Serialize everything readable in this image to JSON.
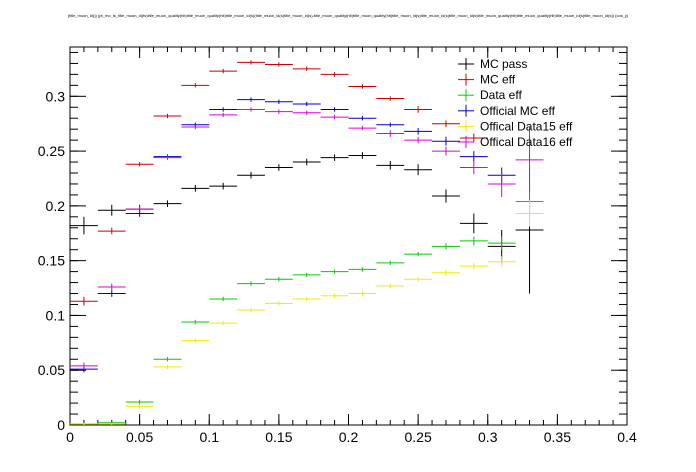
{
  "chart_data": {
    "type": "scatter",
    "title": "(title_muon_id()) (pt_rho_ls_title_muon_id(ts)title_muon_quality(hlt)title_muon_quality(hlt)title_muon_id(s)(title_muon_id(s)title_muon_id(s)-title_muon_quality(hlt)title_muon_quality(hlt)title_muon_id(s)title_muon_id(s)title_muon_id(s)title_muon_quality(hlt)title_muon_quality(hlt)title_muon_id(s)title_muon_id(s)) (cos_y)",
    "xlim": [
      0,
      0.4
    ],
    "ylim": [
      0,
      0.345
    ],
    "x_ticks": [
      {
        "value": 0,
        "label": "0"
      },
      {
        "value": 0.05,
        "label": "0.05"
      },
      {
        "value": 0.1,
        "label": "0.1"
      },
      {
        "value": 0.15,
        "label": "0.15"
      },
      {
        "value": 0.2,
        "label": "0.2"
      },
      {
        "value": 0.25,
        "label": "0.25"
      },
      {
        "value": 0.3,
        "label": "0.3"
      },
      {
        "value": 0.35,
        "label": "0.35"
      },
      {
        "value": 0.4,
        "label": "0.4"
      }
    ],
    "y_ticks": [
      {
        "value": 0,
        "label": "0"
      },
      {
        "value": 0.05,
        "label": "0.05"
      },
      {
        "value": 0.1,
        "label": "0.1"
      },
      {
        "value": 0.15,
        "label": "0.15"
      },
      {
        "value": 0.2,
        "label": "0.2"
      },
      {
        "value": 0.25,
        "label": "0.25"
      },
      {
        "value": 0.3,
        "label": "0.3"
      }
    ],
    "bin_half_width": 0.01,
    "legend_position": "top-right",
    "grid": false,
    "series": [
      {
        "name": "MC pass",
        "color": "#000000",
        "points": [
          {
            "x": 0.01,
            "y": 0.182,
            "err": 0.008
          },
          {
            "x": 0.03,
            "y": 0.196,
            "err": 0.005
          },
          {
            "x": 0.05,
            "y": 0.197,
            "err": 0.004
          },
          {
            "x": 0.07,
            "y": 0.202,
            "err": 0.003
          },
          {
            "x": 0.09,
            "y": 0.216,
            "err": 0.003
          },
          {
            "x": 0.11,
            "y": 0.218,
            "err": 0.003
          },
          {
            "x": 0.13,
            "y": 0.228,
            "err": 0.003
          },
          {
            "x": 0.15,
            "y": 0.235,
            "err": 0.003
          },
          {
            "x": 0.17,
            "y": 0.24,
            "err": 0.003
          },
          {
            "x": 0.19,
            "y": 0.244,
            "err": 0.003
          },
          {
            "x": 0.21,
            "y": 0.246,
            "err": 0.003
          },
          {
            "x": 0.23,
            "y": 0.237,
            "err": 0.004
          },
          {
            "x": 0.25,
            "y": 0.233,
            "err": 0.005
          },
          {
            "x": 0.27,
            "y": 0.209,
            "err": 0.006
          },
          {
            "x": 0.29,
            "y": 0.184,
            "err": 0.009
          },
          {
            "x": 0.31,
            "y": 0.163,
            "err": 0.015
          },
          {
            "x": 0.33,
            "y": 0.178,
            "err": 0.058
          }
        ]
      },
      {
        "name": "MC eff",
        "color": "#cc0000",
        "points": [
          {
            "x": 0.01,
            "y": 0.113,
            "err": 0.004
          },
          {
            "x": 0.03,
            "y": 0.177,
            "err": 0.003
          },
          {
            "x": 0.05,
            "y": 0.238,
            "err": 0.002
          },
          {
            "x": 0.07,
            "y": 0.282,
            "err": 0.002
          },
          {
            "x": 0.09,
            "y": 0.31,
            "err": 0.002
          },
          {
            "x": 0.11,
            "y": 0.323,
            "err": 0.002
          },
          {
            "x": 0.13,
            "y": 0.331,
            "err": 0.002
          },
          {
            "x": 0.15,
            "y": 0.329,
            "err": 0.002
          },
          {
            "x": 0.17,
            "y": 0.325,
            "err": 0.002
          },
          {
            "x": 0.19,
            "y": 0.32,
            "err": 0.002
          },
          {
            "x": 0.21,
            "y": 0.309,
            "err": 0.002
          },
          {
            "x": 0.23,
            "y": 0.298,
            "err": 0.002
          },
          {
            "x": 0.25,
            "y": 0.288,
            "err": 0.003
          },
          {
            "x": 0.27,
            "y": 0.275,
            "err": 0.003
          },
          {
            "x": 0.29,
            "y": 0.262,
            "err": 0.004
          }
        ]
      },
      {
        "name": "Data eff",
        "color": "#00cc00",
        "points": [
          {
            "x": 0.01,
            "y": 0.001,
            "err": 0.001
          },
          {
            "x": 0.03,
            "y": 0.002,
            "err": 0.001
          },
          {
            "x": 0.05,
            "y": 0.021,
            "err": 0.002
          },
          {
            "x": 0.07,
            "y": 0.06,
            "err": 0.002
          },
          {
            "x": 0.09,
            "y": 0.094,
            "err": 0.002
          },
          {
            "x": 0.11,
            "y": 0.115,
            "err": 0.002
          },
          {
            "x": 0.13,
            "y": 0.129,
            "err": 0.002
          },
          {
            "x": 0.15,
            "y": 0.133,
            "err": 0.002
          },
          {
            "x": 0.17,
            "y": 0.137,
            "err": 0.002
          },
          {
            "x": 0.19,
            "y": 0.14,
            "err": 0.002
          },
          {
            "x": 0.21,
            "y": 0.142,
            "err": 0.002
          },
          {
            "x": 0.23,
            "y": 0.148,
            "err": 0.002
          },
          {
            "x": 0.25,
            "y": 0.156,
            "err": 0.002
          },
          {
            "x": 0.27,
            "y": 0.163,
            "err": 0.003
          },
          {
            "x": 0.29,
            "y": 0.168,
            "err": 0.004
          },
          {
            "x": 0.31,
            "y": 0.166,
            "err": 0.006
          },
          {
            "x": 0.33,
            "y": 0.204,
            "err": 0.014
          }
        ]
      },
      {
        "name": "Official MC eff",
        "color": "#0000cc",
        "points": [
          {
            "x": 0.01,
            "y": 0.051,
            "err": 0.003
          },
          {
            "x": 0.03,
            "y": 0.12,
            "err": 0.003
          },
          {
            "x": 0.05,
            "y": 0.193,
            "err": 0.003
          },
          {
            "x": 0.07,
            "y": 0.245,
            "err": 0.002
          },
          {
            "x": 0.09,
            "y": 0.274,
            "err": 0.002
          },
          {
            "x": 0.11,
            "y": 0.288,
            "err": 0.002
          },
          {
            "x": 0.13,
            "y": 0.297,
            "err": 0.002
          },
          {
            "x": 0.15,
            "y": 0.295,
            "err": 0.002
          },
          {
            "x": 0.17,
            "y": 0.293,
            "err": 0.002
          },
          {
            "x": 0.19,
            "y": 0.288,
            "err": 0.002
          },
          {
            "x": 0.21,
            "y": 0.28,
            "err": 0.002
          },
          {
            "x": 0.23,
            "y": 0.274,
            "err": 0.002
          },
          {
            "x": 0.25,
            "y": 0.268,
            "err": 0.003
          },
          {
            "x": 0.27,
            "y": 0.259,
            "err": 0.004
          },
          {
            "x": 0.29,
            "y": 0.245,
            "err": 0.005
          },
          {
            "x": 0.31,
            "y": 0.228,
            "err": 0.007
          }
        ]
      },
      {
        "name": "Offical Data15 eff",
        "color": "#eeee00",
        "points": [
          {
            "x": 0.01,
            "y": 0.001,
            "err": 0.001
          },
          {
            "x": 0.03,
            "y": 0.001,
            "err": 0.001
          },
          {
            "x": 0.05,
            "y": 0.017,
            "err": 0.002
          },
          {
            "x": 0.07,
            "y": 0.053,
            "err": 0.002
          },
          {
            "x": 0.09,
            "y": 0.077,
            "err": 0.002
          },
          {
            "x": 0.11,
            "y": 0.093,
            "err": 0.002
          },
          {
            "x": 0.13,
            "y": 0.105,
            "err": 0.002
          },
          {
            "x": 0.15,
            "y": 0.111,
            "err": 0.002
          },
          {
            "x": 0.17,
            "y": 0.115,
            "err": 0.002
          },
          {
            "x": 0.19,
            "y": 0.118,
            "err": 0.002
          },
          {
            "x": 0.21,
            "y": 0.12,
            "err": 0.002
          },
          {
            "x": 0.23,
            "y": 0.127,
            "err": 0.002
          },
          {
            "x": 0.25,
            "y": 0.133,
            "err": 0.002
          },
          {
            "x": 0.27,
            "y": 0.139,
            "err": 0.003
          },
          {
            "x": 0.29,
            "y": 0.145,
            "err": 0.003
          },
          {
            "x": 0.31,
            "y": 0.149,
            "err": 0.005
          },
          {
            "x": 0.33,
            "y": 0.193,
            "err": 0.012
          }
        ]
      },
      {
        "name": "Offical Data16 eff",
        "color": "#dd00dd",
        "points": [
          {
            "x": 0.01,
            "y": 0.054,
            "err": 0.003
          },
          {
            "x": 0.03,
            "y": 0.126,
            "err": 0.003
          },
          {
            "x": 0.05,
            "y": 0.197,
            "err": 0.003
          },
          {
            "x": 0.07,
            "y": 0.244,
            "err": 0.002
          },
          {
            "x": 0.09,
            "y": 0.272,
            "err": 0.002
          },
          {
            "x": 0.11,
            "y": 0.283,
            "err": 0.002
          },
          {
            "x": 0.13,
            "y": 0.288,
            "err": 0.002
          },
          {
            "x": 0.15,
            "y": 0.286,
            "err": 0.002
          },
          {
            "x": 0.17,
            "y": 0.285,
            "err": 0.002
          },
          {
            "x": 0.19,
            "y": 0.281,
            "err": 0.002
          },
          {
            "x": 0.21,
            "y": 0.271,
            "err": 0.002
          },
          {
            "x": 0.23,
            "y": 0.266,
            "err": 0.003
          },
          {
            "x": 0.25,
            "y": 0.26,
            "err": 0.003
          },
          {
            "x": 0.27,
            "y": 0.25,
            "err": 0.004
          },
          {
            "x": 0.29,
            "y": 0.235,
            "err": 0.006
          },
          {
            "x": 0.31,
            "y": 0.22,
            "err": 0.012
          },
          {
            "x": 0.33,
            "y": 0.242,
            "err": 0.03
          }
        ]
      }
    ]
  }
}
